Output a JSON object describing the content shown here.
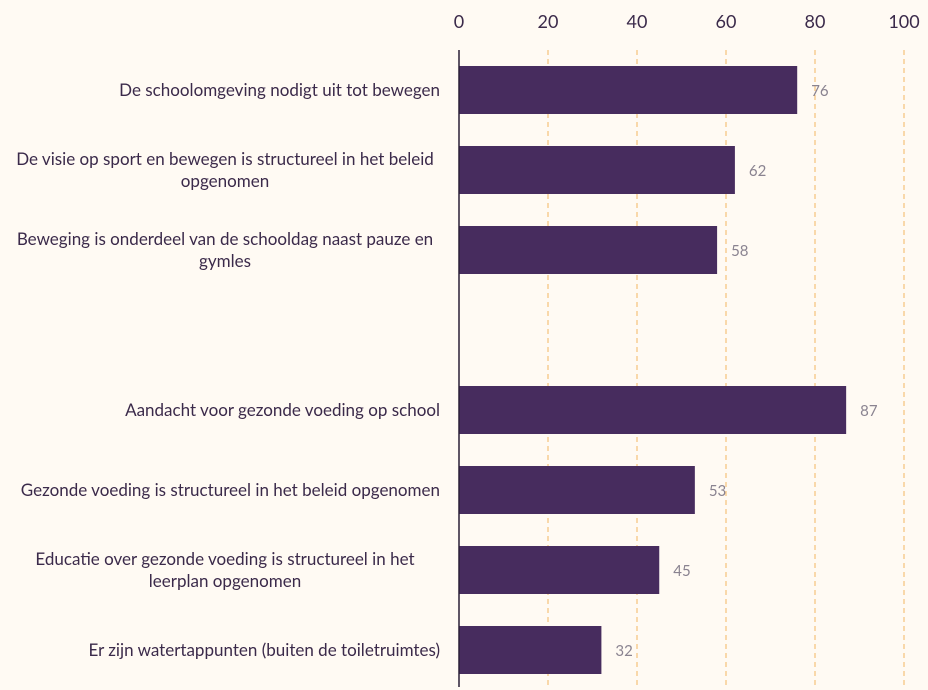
{
  "chart_data": {
    "type": "bar",
    "orientation": "horizontal",
    "categories": [
      "De schoolomgeving nodigt uit tot bewegen",
      "De visie op sport en bewegen is structureel in het beleid opgenomen",
      "Beweging is onderdeel van de schooldag naast pauze en gymles",
      null,
      "Aandacht voor gezonde voeding op school",
      "Gezonde voeding is structureel in het beleid opgenomen",
      "Educatie over gezonde voeding is structureel in het leerplan opgenomen",
      "Er zijn watertappunten (buiten de toiletruimtes)"
    ],
    "values": [
      76,
      62,
      58,
      null,
      87,
      53,
      45,
      32
    ],
    "color": "#472c5e",
    "xlim": [
      0,
      100
    ],
    "xticks": [
      0,
      20,
      40,
      60,
      80,
      100
    ],
    "grid": true
  }
}
